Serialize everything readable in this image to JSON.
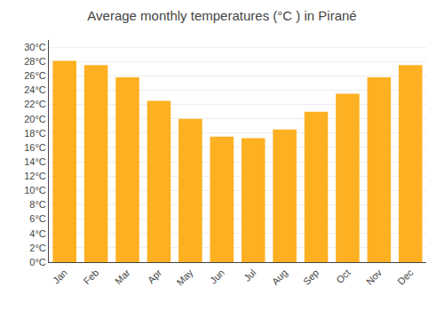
{
  "chart_data": {
    "type": "bar",
    "title": "Average monthly temperatures (°C ) in Pirané",
    "categories": [
      "Jan",
      "Feb",
      "Mar",
      "Apr",
      "May",
      "Jun",
      "Jul",
      "Aug",
      "Sep",
      "Oct",
      "Nov",
      "Dec"
    ],
    "values": [
      28.1,
      27.5,
      25.8,
      22.5,
      20.0,
      17.5,
      17.3,
      18.5,
      21.0,
      23.5,
      25.8,
      27.5
    ],
    "color": "#FDB022",
    "ylim": [
      0,
      31
    ],
    "yticks": [
      {
        "value": 0,
        "label": "0°C"
      },
      {
        "value": 2,
        "label": "2°C"
      },
      {
        "value": 4,
        "label": "4°C"
      },
      {
        "value": 6,
        "label": "6°C"
      },
      {
        "value": 8,
        "label": "8°C"
      },
      {
        "value": 10,
        "label": "10°C"
      },
      {
        "value": 12,
        "label": "12°C"
      },
      {
        "value": 14,
        "label": "14°C"
      },
      {
        "value": 16,
        "label": "16°C"
      },
      {
        "value": 18,
        "label": "18°C"
      },
      {
        "value": 20,
        "label": "20°C"
      },
      {
        "value": 22,
        "label": "22°C"
      },
      {
        "value": 24,
        "label": "24°C"
      },
      {
        "value": 26,
        "label": "26°C"
      },
      {
        "value": 28,
        "label": "28°C"
      },
      {
        "value": 30,
        "label": "30°C"
      }
    ],
    "grid": true
  }
}
